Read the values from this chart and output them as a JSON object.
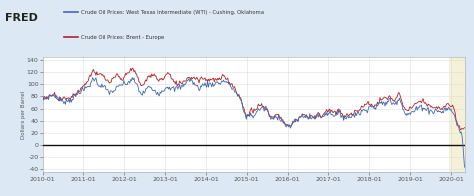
{
  "legend_wti": "Crude Oil Prices: West Texas Intermediate (WTI) - Cushing, Oklahoma",
  "legend_brent": "Crude Oil Prices: Brent - Europe",
  "ylabel": "Dollars per Barrel",
  "yticks": [
    -40,
    -20,
    0,
    20,
    40,
    60,
    80,
    100,
    120,
    140
  ],
  "ylim": [
    -45,
    145
  ],
  "xtick_labels": [
    "2010-01",
    "2011-01",
    "2012-01",
    "2013-01",
    "2014-01",
    "2015-01",
    "2016-01",
    "2017-01",
    "2018-01",
    "2019-01",
    "2020-01"
  ],
  "background_color": "#dce9f5",
  "plot_bg_color": "#ffffff",
  "highlight_bg_color": "#f5f0d8",
  "wti_color": "#4169b0",
  "brent_color": "#b22222",
  "zero_line_color": "#111111",
  "font_color": "#555555",
  "grid_color": "#dddddd",
  "header_bg": "#dce9f5",
  "wti_key": [
    75,
    77,
    80,
    82,
    80,
    75,
    72,
    73,
    74,
    78,
    82,
    89,
    90,
    95,
    100,
    110,
    103,
    98,
    95,
    90,
    87,
    90,
    94,
    99,
    100,
    102,
    107,
    105,
    95,
    84,
    88,
    95,
    92,
    90,
    86,
    88,
    94,
    96,
    93,
    92,
    95,
    96,
    103,
    107,
    104,
    98,
    94,
    98,
    100,
    100,
    100,
    102,
    102,
    105,
    104,
    98,
    92,
    85,
    76,
    58,
    47,
    50,
    48,
    55,
    60,
    60,
    58,
    43,
    45,
    47,
    44,
    37,
    31,
    31,
    38,
    42,
    47,
    49,
    45,
    45,
    45,
    50,
    46,
    52,
    52,
    53,
    48,
    53,
    49,
    45,
    46,
    48,
    52,
    52,
    56,
    58,
    64,
    62,
    63,
    67,
    70,
    68,
    74,
    68,
    72,
    76,
    60,
    50,
    52,
    55,
    59,
    63,
    62,
    58,
    57,
    55,
    57,
    54,
    57,
    60,
    57,
    50,
    30,
    20,
    -37
  ],
  "brent_key": [
    77,
    79,
    80,
    85,
    80,
    75,
    76,
    76,
    78,
    82,
    86,
    92,
    97,
    104,
    115,
    122,
    115,
    116,
    112,
    105,
    104,
    110,
    114,
    108,
    111,
    120,
    125,
    120,
    110,
    98,
    102,
    112,
    114,
    114,
    108,
    108,
    113,
    118,
    108,
    102,
    102,
    103,
    108,
    111,
    111,
    110,
    108,
    110,
    108,
    108,
    108,
    107,
    108,
    112,
    110,
    103,
    97,
    88,
    78,
    62,
    48,
    57,
    55,
    62,
    66,
    62,
    57,
    48,
    47,
    50,
    44,
    38,
    32,
    33,
    40,
    43,
    48,
    50,
    45,
    47,
    47,
    52,
    47,
    55,
    56,
    56,
    52,
    55,
    51,
    47,
    49,
    52,
    57,
    58,
    63,
    66,
    69,
    65,
    66,
    72,
    77,
    77,
    78,
    74,
    78,
    82,
    65,
    57,
    60,
    65,
    67,
    72,
    72,
    65,
    64,
    59,
    62,
    60,
    63,
    66,
    64,
    55,
    34,
    26,
    30
  ]
}
